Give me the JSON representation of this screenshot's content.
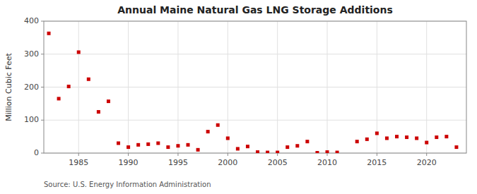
{
  "chart_data": {
    "type": "scatter",
    "title": "Annual Maine Natural Gas LNG Storage Additions",
    "ylabel": "Million Cubic Feet",
    "source": "Source: U.S. Energy Information Administration",
    "color": "#cc0000",
    "marker": "square",
    "grid": true,
    "xlim": [
      1981.5,
      2024
    ],
    "xticks": [
      1985,
      1990,
      1995,
      2000,
      2005,
      2010,
      2015,
      2020
    ],
    "ylim": [
      0,
      400
    ],
    "yticks": [
      0,
      100,
      200,
      300,
      400
    ],
    "x": [
      1982,
      1983,
      1984,
      1985,
      1986,
      1987,
      1988,
      1989,
      1990,
      1991,
      1992,
      1993,
      1994,
      1995,
      1996,
      1997,
      1998,
      1999,
      2000,
      2001,
      2002,
      2003,
      2004,
      2005,
      2006,
      2007,
      2008,
      2009,
      2010,
      2011,
      2013,
      2014,
      2015,
      2016,
      2017,
      2018,
      2019,
      2020,
      2021,
      2022,
      2023
    ],
    "values": [
      363,
      165,
      202,
      306,
      224,
      125,
      157,
      30,
      18,
      25,
      27,
      30,
      18,
      22,
      25,
      10,
      65,
      85,
      45,
      13,
      20,
      3,
      2,
      2,
      18,
      22,
      35,
      1,
      3,
      2,
      35,
      42,
      60,
      45,
      50,
      48,
      45,
      32,
      48,
      50,
      18
    ]
  }
}
